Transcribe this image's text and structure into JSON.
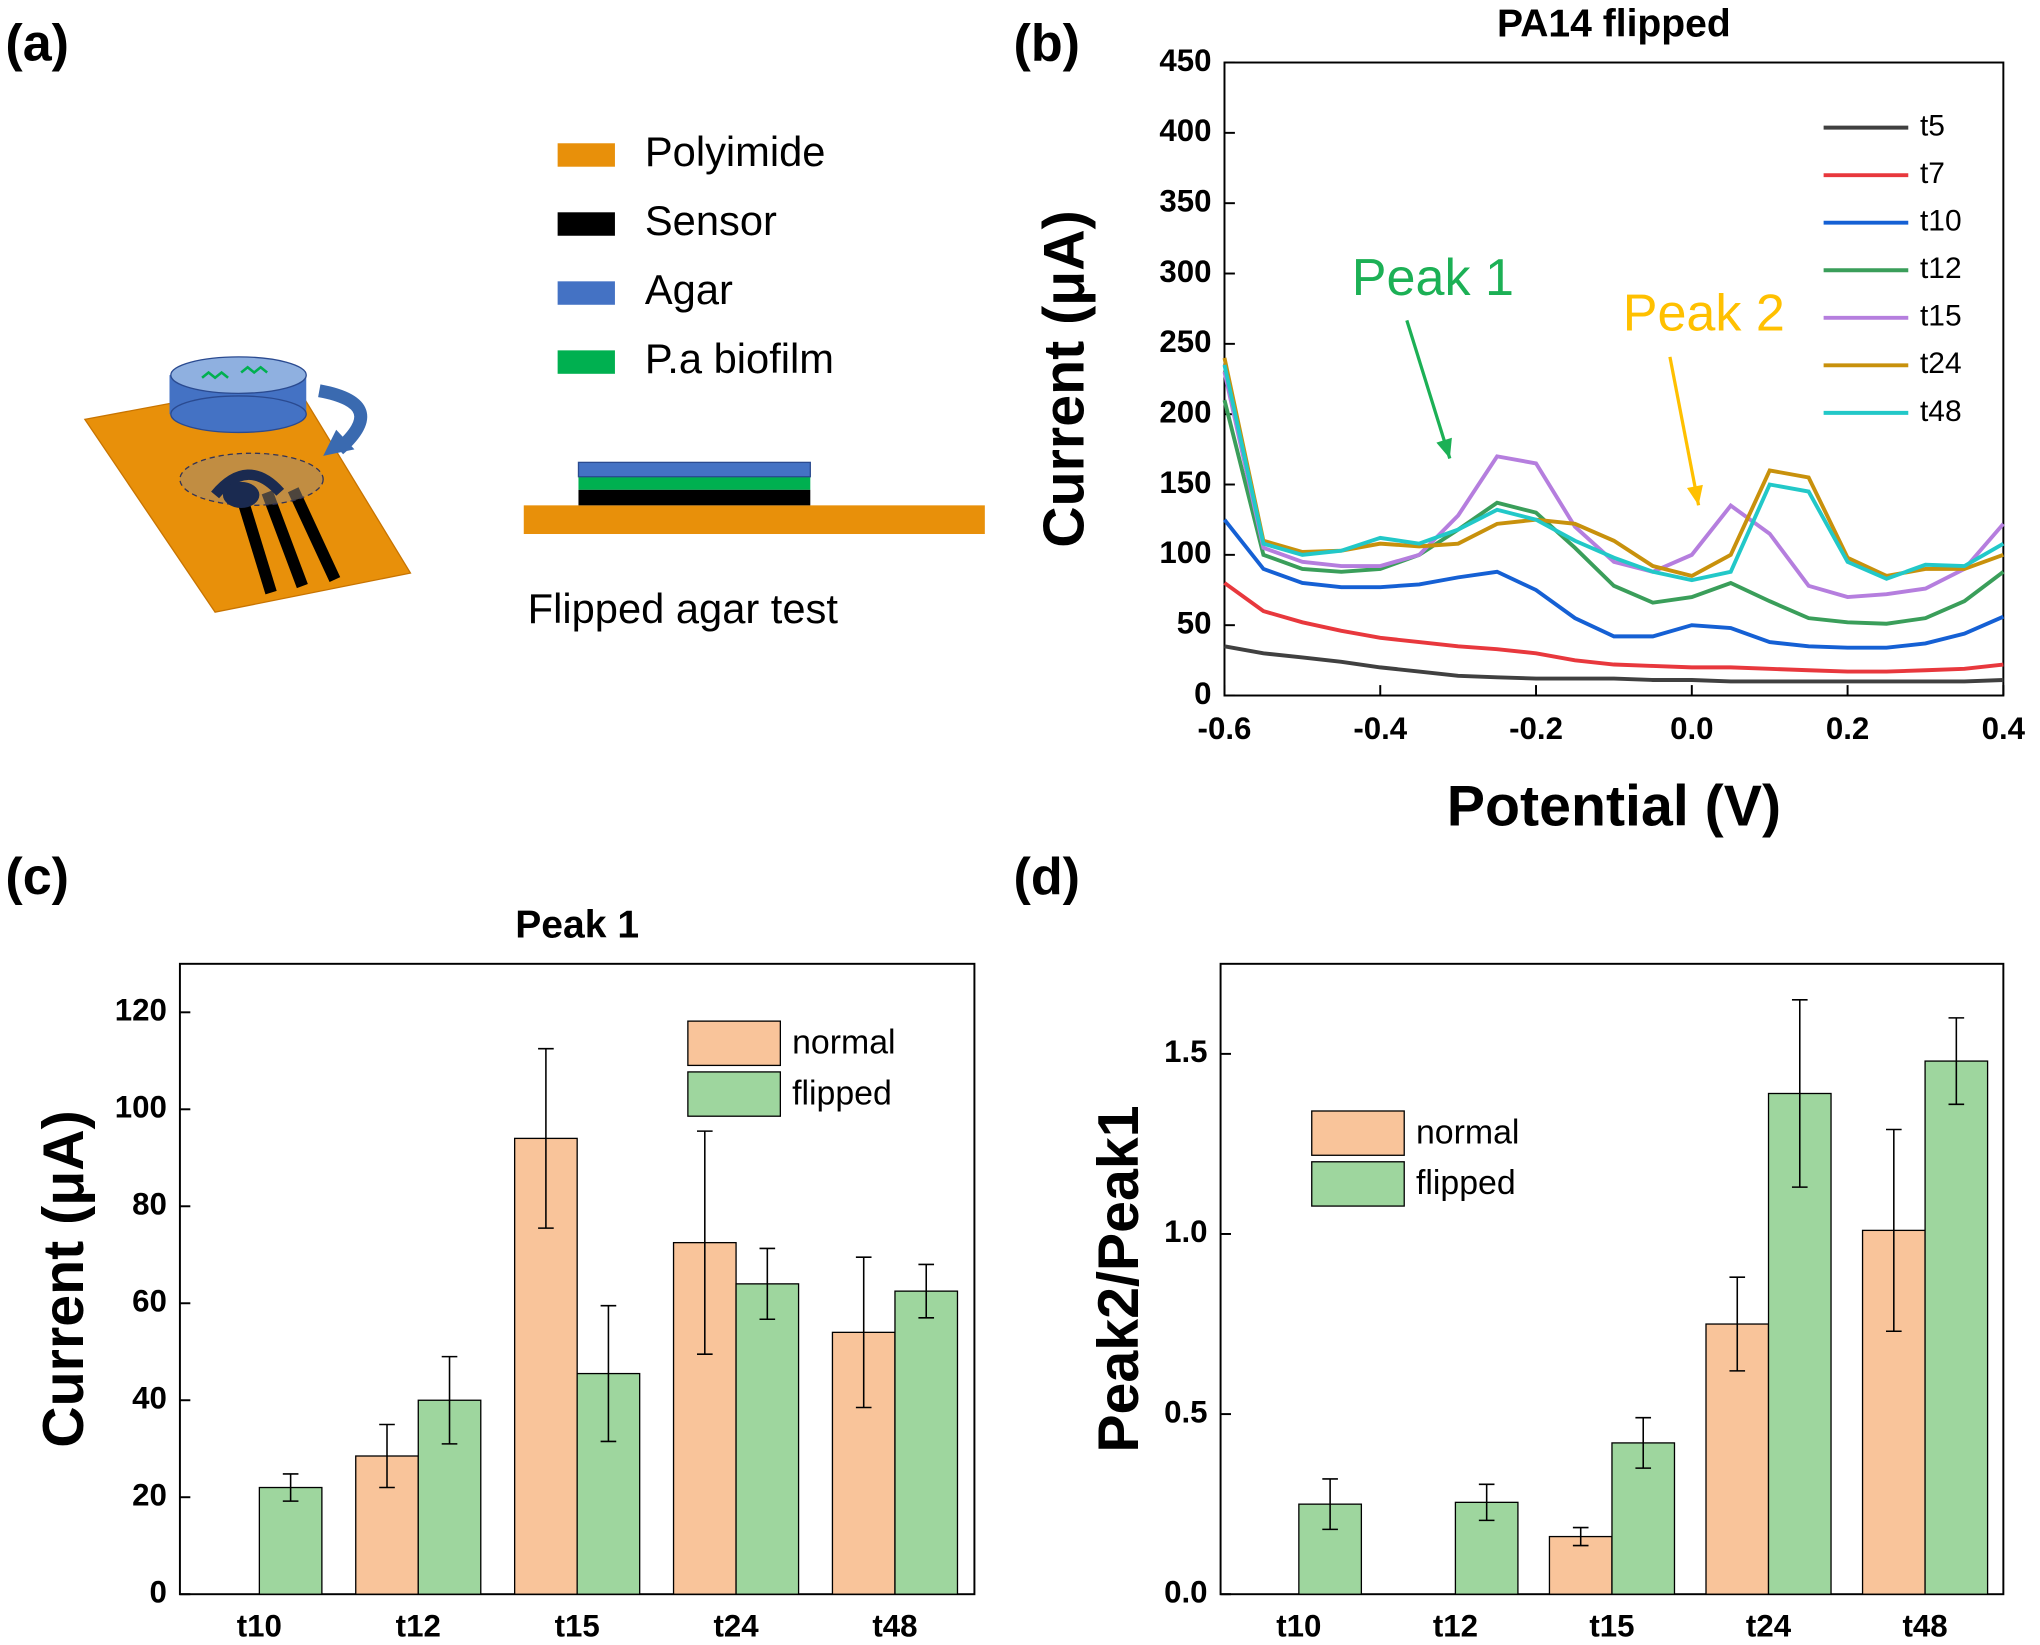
{
  "panels": [
    "(a)",
    "(b)",
    "(c)",
    "(d)"
  ],
  "diagram": {
    "legend": [
      {
        "label": "Polyimide",
        "color": "#e8900a"
      },
      {
        "label": "Sensor",
        "color": "#000000"
      },
      {
        "label": "Agar",
        "color": "#4472c4"
      },
      {
        "label": "P.a biofilm",
        "color": "#00b050"
      }
    ],
    "caption": "Flipped agar test"
  },
  "chart_data": [
    {
      "type": "line",
      "title": "PA14 flipped",
      "xlabel": "Potential (V)",
      "ylabel": "Current (μA)",
      "x": [
        -0.6,
        -0.55,
        -0.5,
        -0.45,
        -0.4,
        -0.35,
        -0.3,
        -0.25,
        -0.2,
        -0.15,
        -0.1,
        -0.05,
        0,
        0.05,
        0.1,
        0.15,
        0.2,
        0.25,
        0.3,
        0.35,
        0.4
      ],
      "series": [
        {
          "name": "t5",
          "color": "#404040",
          "values": [
            35,
            30,
            27,
            24,
            20,
            17,
            14,
            13,
            12,
            12,
            12,
            11,
            11,
            10,
            10,
            10,
            10,
            10,
            10,
            10,
            11
          ]
        },
        {
          "name": "t7",
          "color": "#e8383d",
          "values": [
            80,
            60,
            52,
            46,
            41,
            38,
            35,
            33,
            30,
            25,
            22,
            21,
            20,
            20,
            19,
            18,
            17,
            17,
            18,
            19,
            22
          ]
        },
        {
          "name": "t10",
          "color": "#1560d4",
          "values": [
            125,
            90,
            80,
            77,
            77,
            79,
            84,
            88,
            75,
            55,
            42,
            42,
            50,
            48,
            38,
            35,
            34,
            34,
            37,
            44,
            56
          ]
        },
        {
          "name": "t12",
          "color": "#3a9e5a",
          "values": [
            210,
            100,
            90,
            88,
            90,
            100,
            118,
            137,
            130,
            105,
            78,
            66,
            70,
            80,
            67,
            55,
            52,
            51,
            55,
            67,
            88
          ]
        },
        {
          "name": "t15",
          "color": "#b57ede",
          "values": [
            230,
            105,
            95,
            92,
            92,
            100,
            128,
            170,
            165,
            120,
            95,
            88,
            100,
            135,
            115,
            78,
            70,
            72,
            76,
            90,
            122
          ]
        },
        {
          "name": "t24",
          "color": "#c8910c",
          "values": [
            240,
            110,
            102,
            103,
            108,
            106,
            108,
            122,
            125,
            122,
            110,
            92,
            85,
            100,
            160,
            155,
            98,
            85,
            90,
            90,
            100
          ]
        },
        {
          "name": "t48",
          "color": "#22c8c8",
          "values": [
            235,
            108,
            100,
            103,
            112,
            108,
            118,
            132,
            125,
            110,
            98,
            88,
            82,
            88,
            150,
            145,
            95,
            83,
            93,
            92,
            108
          ]
        }
      ],
      "xlim": [
        -0.6,
        0.4
      ],
      "xticks": [
        -0.6,
        -0.4,
        -0.2,
        {
          "value": 0,
          "label": "0.0"
        },
        0.2,
        0.4
      ],
      "ylim": [
        0,
        450
      ],
      "yticks": [
        0,
        50,
        100,
        150,
        200,
        250,
        300,
        350,
        400,
        450
      ],
      "legend": "upper right",
      "annotations": [
        {
          "text": "Peak 1",
          "color": "#1cb055"
        },
        {
          "text": "Peak 2",
          "color": "#ffc000"
        }
      ]
    },
    {
      "type": "bar",
      "title": "Peak 1",
      "ylabel": "Current (μA)",
      "categories": [
        "t10",
        "t12",
        "t15",
        "t24",
        "t48"
      ],
      "series": [
        {
          "name": "normal",
          "color": "#f9c49a",
          "values": [
            null,
            28.5,
            94,
            72.5,
            54
          ],
          "errors": [
            null,
            6.5,
            18.5,
            23,
            15.5
          ]
        },
        {
          "name": "flipped",
          "color": "#9ed69e",
          "values": [
            22,
            40,
            45.5,
            64,
            62.5
          ],
          "errors": [
            2.8,
            9,
            14,
            7.3,
            5.5
          ]
        }
      ],
      "ylim": [
        0,
        130
      ],
      "yticks": [
        0,
        20,
        40,
        60,
        80,
        100,
        120
      ],
      "legend": "upper right"
    },
    {
      "type": "bar",
      "ylabel": "Peak2/Peak1",
      "categories": [
        "t10",
        "t12",
        "t15",
        "t24",
        "t48"
      ],
      "series": [
        {
          "name": "normal",
          "color": "#f9c49a",
          "values": [
            null,
            null,
            0.16,
            0.75,
            1.01
          ],
          "errors": [
            null,
            null,
            0.025,
            0.13,
            0.28
          ]
        },
        {
          "name": "flipped",
          "color": "#9ed69e",
          "values": [
            0.25,
            0.255,
            0.42,
            1.39,
            1.48
          ],
          "errors": [
            0.07,
            0.05,
            0.07,
            0.26,
            0.12
          ]
        }
      ],
      "ylim": [
        0,
        1.75
      ],
      "yticks": [
        {
          "value": 0,
          "label": "0.0"
        },
        0.5,
        {
          "value": 1,
          "label": "1.0"
        },
        1.5
      ],
      "legend": "upper left"
    }
  ]
}
